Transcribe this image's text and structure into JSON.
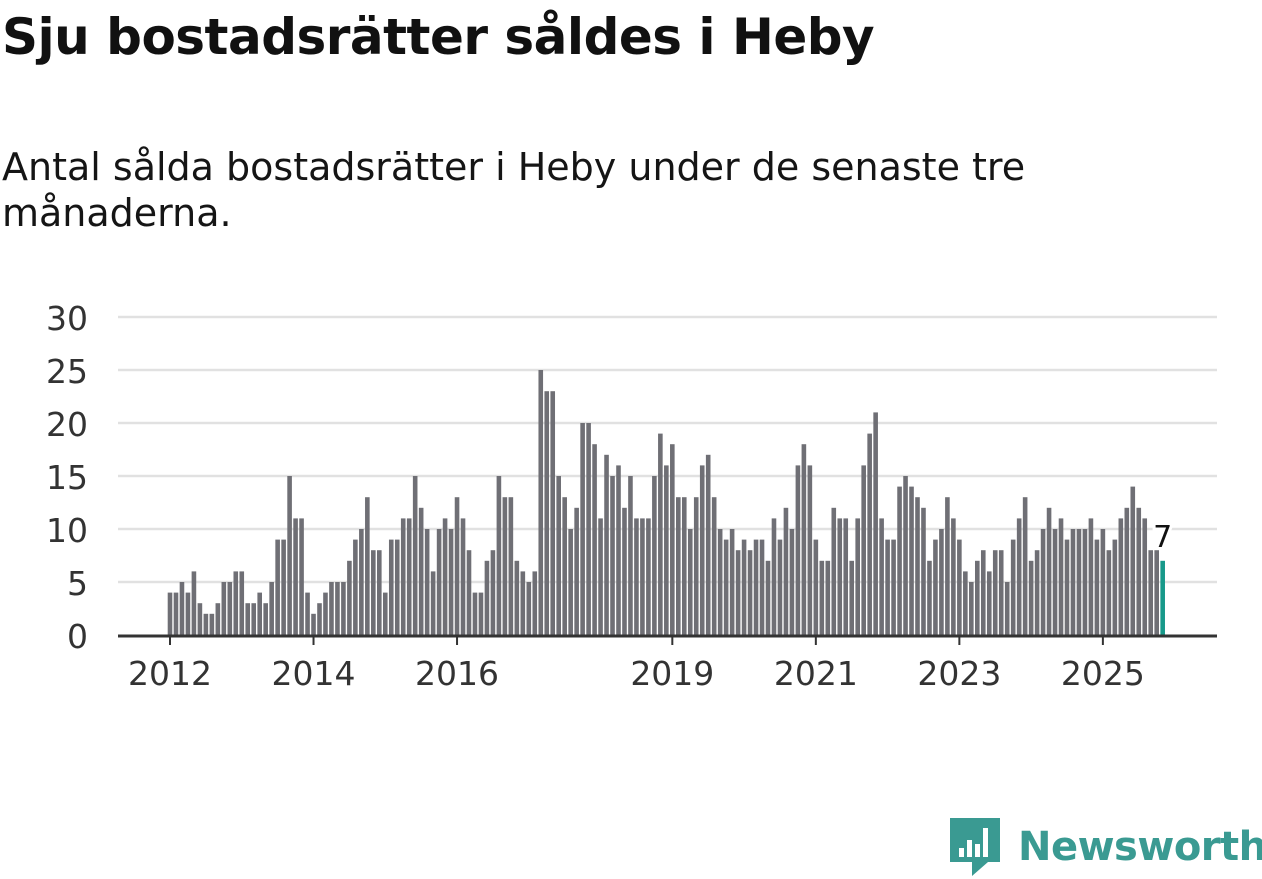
{
  "title": "Sju bostadsrätter såldes i Heby",
  "subtitle": "Antal sålda bostadsrätter i Heby under de senaste tre månaderna.",
  "brand": {
    "name": "Newsworthy",
    "color": "#3a9a92"
  },
  "colors": {
    "bar": "#6f6f75",
    "highlight": "#17998a",
    "grid": "#e1e1e1",
    "axis": "#333333",
    "text": "#333333"
  },
  "chart_data": {
    "type": "bar",
    "title": "Sju bostadsrätter såldes i Heby",
    "subtitle": "Antal sålda bostadsrätter i Heby under de senaste tre månaderna.",
    "xlabel": "",
    "ylabel": "",
    "ylim": [
      0,
      30
    ],
    "yticks": [
      0,
      5,
      10,
      15,
      20,
      25,
      30
    ],
    "grid": true,
    "period_start": "2012-01",
    "xticks": [
      {
        "label": "2012",
        "index": 0
      },
      {
        "label": "2014",
        "index": 24
      },
      {
        "label": "2016",
        "index": 48
      },
      {
        "label": "2019",
        "index": 84
      },
      {
        "label": "2021",
        "index": 108
      },
      {
        "label": "2023",
        "index": 132
      },
      {
        "label": "2025",
        "index": 156
      }
    ],
    "values": [
      4,
      4,
      5,
      4,
      6,
      3,
      2,
      2,
      3,
      5,
      5,
      6,
      6,
      3,
      3,
      4,
      3,
      5,
      9,
      9,
      15,
      11,
      11,
      4,
      2,
      3,
      4,
      5,
      5,
      5,
      7,
      9,
      10,
      13,
      8,
      8,
      4,
      9,
      9,
      11,
      11,
      15,
      12,
      10,
      6,
      10,
      11,
      10,
      13,
      11,
      8,
      4,
      4,
      7,
      8,
      15,
      13,
      13,
      7,
      6,
      5,
      6,
      25,
      23,
      23,
      15,
      13,
      10,
      12,
      20,
      20,
      18,
      11,
      17,
      15,
      16,
      12,
      15,
      11,
      11,
      11,
      15,
      19,
      16,
      18,
      13,
      13,
      10,
      13,
      16,
      17,
      13,
      10,
      9,
      10,
      8,
      9,
      8,
      9,
      9,
      7,
      11,
      9,
      12,
      10,
      16,
      18,
      16,
      9,
      7,
      7,
      12,
      11,
      11,
      7,
      11,
      16,
      19,
      21,
      11,
      9,
      9,
      14,
      15,
      14,
      13,
      12,
      7,
      9,
      10,
      13,
      11,
      9,
      6,
      5,
      7,
      8,
      6,
      8,
      8,
      5,
      9,
      11,
      13,
      7,
      8,
      10,
      12,
      10,
      11,
      9,
      10,
      10,
      10,
      11,
      9,
      10,
      8,
      9,
      11,
      12,
      14,
      12,
      11,
      8,
      8,
      7
    ],
    "highlight": {
      "index": 166,
      "value": 7,
      "label": "7"
    }
  }
}
